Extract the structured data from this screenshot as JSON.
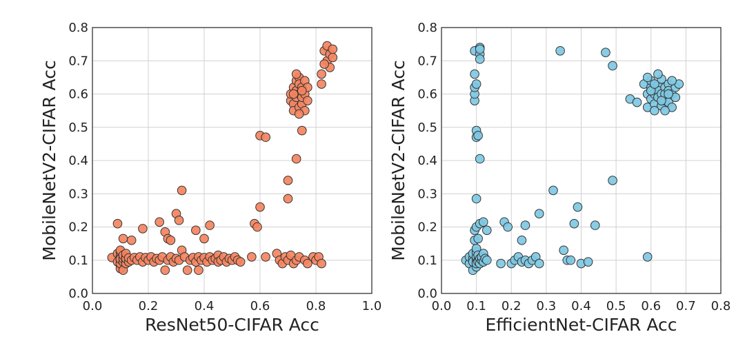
{
  "chart_data": [
    {
      "type": "scatter",
      "xlabel": "ResNet50-CIFAR Acc",
      "ylabel": "MobileNetV2-CIFAR Acc",
      "xlim": [
        0.0,
        1.0
      ],
      "ylim": [
        0.0,
        0.8
      ],
      "xticks": [
        "0.0",
        "0.2",
        "0.4",
        "0.6",
        "0.8",
        "1.0"
      ],
      "yticks": [
        "0.0",
        "0.1",
        "0.2",
        "0.3",
        "0.4",
        "0.5",
        "0.6",
        "0.7",
        "0.8"
      ],
      "grid": true,
      "color": "#f4845f",
      "points": [
        [
          0.07,
          0.108
        ],
        [
          0.09,
          0.095
        ],
        [
          0.09,
          0.12
        ],
        [
          0.09,
          0.21
        ],
        [
          0.1,
          0.085
        ],
        [
          0.1,
          0.1
        ],
        [
          0.1,
          0.11
        ],
        [
          0.1,
          0.125
        ],
        [
          0.1,
          0.13
        ],
        [
          0.1,
          0.075
        ],
        [
          0.1,
          0.09
        ],
        [
          0.1,
          0.103
        ],
        [
          0.11,
          0.095
        ],
        [
          0.11,
          0.105
        ],
        [
          0.11,
          0.115
        ],
        [
          0.11,
          0.07
        ],
        [
          0.11,
          0.165
        ],
        [
          0.12,
          0.1
        ],
        [
          0.12,
          0.09
        ],
        [
          0.12,
          0.11
        ],
        [
          0.12,
          0.105
        ],
        [
          0.12,
          0.12
        ],
        [
          0.13,
          0.095
        ],
        [
          0.13,
          0.107
        ],
        [
          0.14,
          0.16
        ],
        [
          0.14,
          0.1
        ],
        [
          0.15,
          0.108
        ],
        [
          0.16,
          0.1
        ],
        [
          0.17,
          0.11
        ],
        [
          0.18,
          0.195
        ],
        [
          0.18,
          0.095
        ],
        [
          0.19,
          0.108
        ],
        [
          0.2,
          0.1
        ],
        [
          0.21,
          0.11
        ],
        [
          0.22,
          0.095
        ],
        [
          0.23,
          0.105
        ],
        [
          0.24,
          0.215
        ],
        [
          0.24,
          0.1
        ],
        [
          0.25,
          0.11
        ],
        [
          0.26,
          0.185
        ],
        [
          0.26,
          0.07
        ],
        [
          0.27,
          0.1
        ],
        [
          0.27,
          0.165
        ],
        [
          0.28,
          0.11
        ],
        [
          0.28,
          0.16
        ],
        [
          0.29,
          0.095
        ],
        [
          0.3,
          0.105
        ],
        [
          0.3,
          0.24
        ],
        [
          0.31,
          0.22
        ],
        [
          0.31,
          0.1
        ],
        [
          0.32,
          0.31
        ],
        [
          0.32,
          0.13
        ],
        [
          0.33,
          0.11
        ],
        [
          0.34,
          0.07
        ],
        [
          0.35,
          0.1
        ],
        [
          0.36,
          0.108
        ],
        [
          0.37,
          0.19
        ],
        [
          0.37,
          0.095
        ],
        [
          0.38,
          0.07
        ],
        [
          0.38,
          0.11
        ],
        [
          0.39,
          0.1
        ],
        [
          0.4,
          0.165
        ],
        [
          0.4,
          0.108
        ],
        [
          0.41,
          0.095
        ],
        [
          0.42,
          0.205
        ],
        [
          0.42,
          0.11
        ],
        [
          0.43,
          0.1
        ],
        [
          0.44,
          0.105
        ],
        [
          0.45,
          0.115
        ],
        [
          0.45,
          0.095
        ],
        [
          0.46,
          0.1
        ],
        [
          0.47,
          0.11
        ],
        [
          0.48,
          0.095
        ],
        [
          0.49,
          0.105
        ],
        [
          0.5,
          0.1
        ],
        [
          0.51,
          0.11
        ],
        [
          0.52,
          0.1
        ],
        [
          0.53,
          0.095
        ],
        [
          0.57,
          0.11
        ],
        [
          0.58,
          0.21
        ],
        [
          0.59,
          0.2
        ],
        [
          0.6,
          0.26
        ],
        [
          0.6,
          0.475
        ],
        [
          0.62,
          0.47
        ],
        [
          0.62,
          0.11
        ],
        [
          0.66,
          0.12
        ],
        [
          0.67,
          0.1
        ],
        [
          0.68,
          0.09
        ],
        [
          0.69,
          0.11
        ],
        [
          0.7,
          0.34
        ],
        [
          0.7,
          0.285
        ],
        [
          0.7,
          0.1
        ],
        [
          0.71,
          0.115
        ],
        [
          0.72,
          0.09
        ],
        [
          0.73,
          0.405
        ],
        [
          0.73,
          0.1
        ],
        [
          0.74,
          0.11
        ],
        [
          0.75,
          0.49
        ],
        [
          0.76,
          0.1
        ],
        [
          0.77,
          0.09
        ],
        [
          0.79,
          0.11
        ],
        [
          0.8,
          0.1
        ],
        [
          0.81,
          0.11
        ],
        [
          0.82,
          0.09
        ],
        [
          0.71,
          0.58
        ],
        [
          0.71,
          0.6
        ],
        [
          0.72,
          0.57
        ],
        [
          0.72,
          0.62
        ],
        [
          0.72,
          0.55
        ],
        [
          0.73,
          0.64
        ],
        [
          0.73,
          0.59
        ],
        [
          0.73,
          0.61
        ],
        [
          0.74,
          0.65
        ],
        [
          0.74,
          0.56
        ],
        [
          0.74,
          0.63
        ],
        [
          0.74,
          0.6
        ],
        [
          0.75,
          0.57
        ],
        [
          0.75,
          0.62
        ],
        [
          0.75,
          0.59
        ],
        [
          0.76,
          0.64
        ],
        [
          0.76,
          0.6
        ],
        [
          0.76,
          0.55
        ],
        [
          0.77,
          0.62
        ],
        [
          0.77,
          0.58
        ],
        [
          0.73,
          0.66
        ],
        [
          0.74,
          0.54
        ],
        [
          0.72,
          0.6
        ],
        [
          0.75,
          0.61
        ],
        [
          0.82,
          0.63
        ],
        [
          0.82,
          0.66
        ],
        [
          0.83,
          0.73
        ],
        [
          0.84,
          0.7
        ],
        [
          0.84,
          0.745
        ],
        [
          0.85,
          0.68
        ],
        [
          0.85,
          0.72
        ],
        [
          0.86,
          0.71
        ],
        [
          0.86,
          0.735
        ],
        [
          0.83,
          0.69
        ]
      ]
    },
    {
      "type": "scatter",
      "xlabel": "EfficientNet-CIFAR Acc",
      "ylabel": "MobileNetV2-CIFAR Acc",
      "xlim": [
        0.0,
        0.8
      ],
      "ylim": [
        0.0,
        0.8
      ],
      "xticks": [
        "0.0",
        "0.1",
        "0.2",
        "0.3",
        "0.4",
        "0.5",
        "0.6",
        "0.7",
        "0.8"
      ],
      "yticks": [
        "0.0",
        "0.1",
        "0.2",
        "0.3",
        "0.4",
        "0.5",
        "0.6",
        "0.7",
        "0.8"
      ],
      "grid": true,
      "color": "#7ec8e3",
      "points": [
        [
          0.07,
          0.1
        ],
        [
          0.08,
          0.09
        ],
        [
          0.08,
          0.11
        ],
        [
          0.09,
          0.07
        ],
        [
          0.09,
          0.105
        ],
        [
          0.09,
          0.095
        ],
        [
          0.09,
          0.12
        ],
        [
          0.095,
          0.16
        ],
        [
          0.095,
          0.19
        ],
        [
          0.095,
          0.58
        ],
        [
          0.095,
          0.6
        ],
        [
          0.095,
          0.62
        ],
        [
          0.095,
          0.66
        ],
        [
          0.095,
          0.73
        ],
        [
          0.1,
          0.08
        ],
        [
          0.1,
          0.1
        ],
        [
          0.1,
          0.11
        ],
        [
          0.1,
          0.09
        ],
        [
          0.1,
          0.125
        ],
        [
          0.1,
          0.135
        ],
        [
          0.1,
          0.2
        ],
        [
          0.1,
          0.285
        ],
        [
          0.1,
          0.49
        ],
        [
          0.1,
          0.47
        ],
        [
          0.1,
          0.63
        ],
        [
          0.105,
          0.1
        ],
        [
          0.105,
          0.115
        ],
        [
          0.105,
          0.095
        ],
        [
          0.105,
          0.165
        ],
        [
          0.105,
          0.475
        ],
        [
          0.11,
          0.405
        ],
        [
          0.11,
          0.105
        ],
        [
          0.11,
          0.09
        ],
        [
          0.11,
          0.21
        ],
        [
          0.11,
          0.72
        ],
        [
          0.11,
          0.74
        ],
        [
          0.11,
          0.735
        ],
        [
          0.11,
          0.705
        ],
        [
          0.115,
          0.1
        ],
        [
          0.115,
          0.11
        ],
        [
          0.12,
          0.095
        ],
        [
          0.12,
          0.215
        ],
        [
          0.12,
          0.12
        ],
        [
          0.125,
          0.105
        ],
        [
          0.13,
          0.19
        ],
        [
          0.13,
          0.1
        ],
        [
          0.17,
          0.09
        ],
        [
          0.18,
          0.215
        ],
        [
          0.19,
          0.2
        ],
        [
          0.2,
          0.09
        ],
        [
          0.21,
          0.1
        ],
        [
          0.22,
          0.11
        ],
        [
          0.23,
          0.16
        ],
        [
          0.23,
          0.095
        ],
        [
          0.24,
          0.1
        ],
        [
          0.24,
          0.205
        ],
        [
          0.25,
          0.09
        ],
        [
          0.26,
          0.1
        ],
        [
          0.27,
          0.11
        ],
        [
          0.28,
          0.24
        ],
        [
          0.28,
          0.09
        ],
        [
          0.32,
          0.31
        ],
        [
          0.34,
          0.73
        ],
        [
          0.35,
          0.13
        ],
        [
          0.36,
          0.1
        ],
        [
          0.37,
          0.1
        ],
        [
          0.38,
          0.21
        ],
        [
          0.39,
          0.26
        ],
        [
          0.4,
          0.09
        ],
        [
          0.42,
          0.095
        ],
        [
          0.44,
          0.205
        ],
        [
          0.47,
          0.725
        ],
        [
          0.49,
          0.685
        ],
        [
          0.49,
          0.34
        ],
        [
          0.54,
          0.585
        ],
        [
          0.56,
          0.575
        ],
        [
          0.59,
          0.11
        ],
        [
          0.58,
          0.63
        ],
        [
          0.59,
          0.6
        ],
        [
          0.59,
          0.56
        ],
        [
          0.6,
          0.62
        ],
        [
          0.6,
          0.585
        ],
        [
          0.6,
          0.64
        ],
        [
          0.61,
          0.6
        ],
        [
          0.61,
          0.57
        ],
        [
          0.61,
          0.55
        ],
        [
          0.62,
          0.625
        ],
        [
          0.62,
          0.61
        ],
        [
          0.62,
          0.59
        ],
        [
          0.63,
          0.645
        ],
        [
          0.63,
          0.6
        ],
        [
          0.63,
          0.565
        ],
        [
          0.64,
          0.62
        ],
        [
          0.64,
          0.58
        ],
        [
          0.64,
          0.6
        ],
        [
          0.65,
          0.63
        ],
        [
          0.65,
          0.61
        ],
        [
          0.65,
          0.575
        ],
        [
          0.66,
          0.56
        ],
        [
          0.66,
          0.6
        ],
        [
          0.67,
          0.62
        ],
        [
          0.67,
          0.59
        ],
        [
          0.68,
          0.63
        ],
        [
          0.6,
          0.61
        ],
        [
          0.61,
          0.63
        ],
        [
          0.62,
          0.66
        ],
        [
          0.63,
          0.58
        ],
        [
          0.64,
          0.55
        ],
        [
          0.66,
          0.64
        ],
        [
          0.59,
          0.65
        ],
        [
          0.65,
          0.6
        ]
      ]
    }
  ]
}
